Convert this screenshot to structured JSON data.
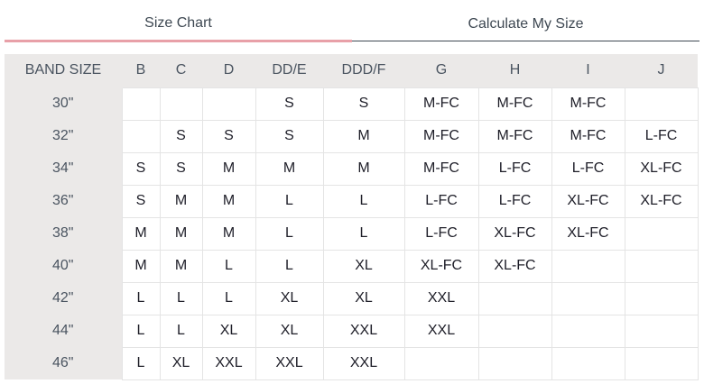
{
  "tabs": [
    {
      "label": "Size Chart",
      "active": true
    },
    {
      "label": "Calculate My Size",
      "active": false
    }
  ],
  "accent_color": "#e8a0a8",
  "table": {
    "headers": [
      "BAND SIZE",
      "B",
      "C",
      "D",
      "DD/E",
      "DDD/F",
      "G",
      "H",
      "I",
      "J"
    ],
    "rows": [
      [
        "30\"",
        "",
        "",
        "",
        "S",
        "S",
        "M-FC",
        "M-FC",
        "M-FC",
        ""
      ],
      [
        "32\"",
        "",
        "S",
        "S",
        "S",
        "M",
        "M-FC",
        "M-FC",
        "M-FC",
        "L-FC"
      ],
      [
        "34\"",
        "S",
        "S",
        "M",
        "M",
        "M",
        "M-FC",
        "L-FC",
        "L-FC",
        "XL-FC"
      ],
      [
        "36\"",
        "S",
        "M",
        "M",
        "L",
        "L",
        "L-FC",
        "L-FC",
        "XL-FC",
        "XL-FC"
      ],
      [
        "38\"",
        "M",
        "M",
        "M",
        "L",
        "L",
        "L-FC",
        "XL-FC",
        "XL-FC",
        ""
      ],
      [
        "40\"",
        "M",
        "M",
        "L",
        "L",
        "XL",
        "XL-FC",
        "XL-FC",
        "",
        ""
      ],
      [
        "42\"",
        "L",
        "L",
        "L",
        "XL",
        "XL",
        "XXL",
        "",
        "",
        ""
      ],
      [
        "44\"",
        "L",
        "L",
        "XL",
        "XL",
        "XXL",
        "XXL",
        "",
        "",
        ""
      ],
      [
        "46\"",
        "L",
        "XL",
        "XXL",
        "XXL",
        "XXL",
        "",
        "",
        "",
        ""
      ]
    ]
  }
}
